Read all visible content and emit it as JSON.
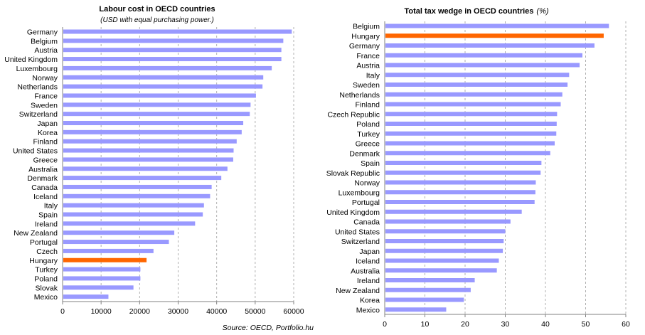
{
  "colors": {
    "bar": "#9999ff",
    "highlight": "#ff6600",
    "grid": "#b0b0b0",
    "axis": "#808080"
  },
  "chart_data": [
    {
      "type": "bar",
      "orientation": "horizontal",
      "title": "Labour cost in OECD countries",
      "subtitle": "(USD with equal purchasing power.)",
      "xlim": [
        0,
        60000
      ],
      "xticks": [
        0,
        10000,
        20000,
        30000,
        40000,
        50000,
        60000
      ],
      "grid": "vertical dashed",
      "highlight": "Hungary",
      "categories": [
        "Germany",
        "Belgium",
        "Austria",
        "United Kingdom",
        "Luxembourg",
        "Norway",
        "Netherlands",
        "France",
        "Sweden",
        "Switzerland",
        "Japan",
        "Korea",
        "Finland",
        "United States",
        "Greece",
        "Australia",
        "Denmark",
        "Canada",
        "Iceland",
        "Italy",
        "Spain",
        "Ireland",
        "New Zealand",
        "Portugal",
        "Czech",
        "Hungary",
        "Turkey",
        "Poland",
        "Slovak",
        "Mexico"
      ],
      "values": [
        59500,
        57300,
        56800,
        56800,
        54300,
        52100,
        51900,
        50200,
        48800,
        48600,
        46900,
        46500,
        45200,
        44400,
        44300,
        42800,
        41200,
        38700,
        38300,
        36700,
        36400,
        34400,
        29000,
        27600,
        23600,
        21800,
        20200,
        20200,
        18400,
        11900
      ]
    },
    {
      "type": "bar",
      "orientation": "horizontal",
      "title": "Total tax wedge in OECD countries",
      "title_unit": "(%)",
      "xlim": [
        0,
        60
      ],
      "xticks": [
        0,
        10,
        20,
        30,
        40,
        50,
        60
      ],
      "grid": "vertical dashed",
      "highlight": "Hungary",
      "categories": [
        "Belgium",
        "Hungary",
        "Germany",
        "France",
        "Austria",
        "Italy",
        "Sweden",
        "Netherlands",
        "Finland",
        "Czech Republic",
        "Poland",
        "Turkey",
        "Greece",
        "Denmark",
        "Spain",
        "Slovak Republic",
        "Norway",
        "Luxembourg",
        "Portugal",
        "United Kingdom",
        "Canada",
        "United States",
        "Switzerland",
        "Japan",
        "Iceland",
        "Australia",
        "Ireland",
        "New Zealand",
        "Korea",
        "Mexico"
      ],
      "values": [
        55.8,
        54.5,
        52.2,
        49.2,
        48.5,
        45.9,
        45.5,
        44.2,
        43.8,
        42.9,
        42.8,
        42.7,
        42.3,
        41.2,
        39.0,
        38.8,
        37.6,
        37.5,
        37.3,
        34.1,
        31.3,
        30.0,
        29.6,
        29.4,
        28.4,
        27.9,
        22.4,
        21.4,
        19.7,
        15.3
      ]
    }
  ],
  "footer": {
    "source": "Source: OECD, Portfolio.hu"
  }
}
